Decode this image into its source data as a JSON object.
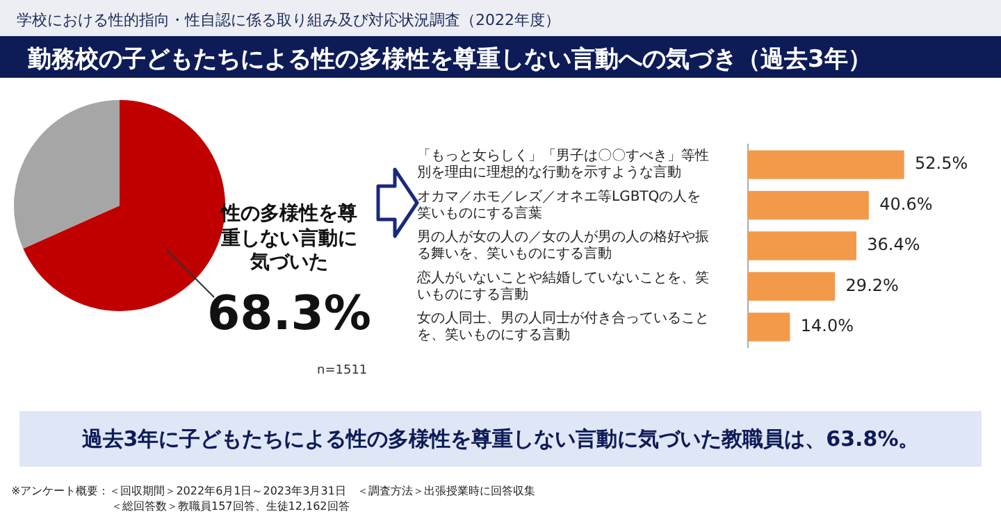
{
  "chart_data": [
    {
      "type": "pie",
      "title": "勤務校の子どもたちによる性の多様性を尊重しない言動への気づき（過去3年）",
      "subtitle": "学校における性的指向・性自認に係る取り組み及び対応状況調査（2022年度）",
      "categories": [
        "性の多様性を尊重しない言動に気づいた",
        null
      ],
      "values": [
        68.3,
        31.7
      ],
      "colors": [
        "#c00000",
        "#a6a6a6"
      ],
      "value_labels": [
        "68.3%",
        null
      ],
      "legend": false,
      "annotations": [
        "n=1511",
        "過去3年に子どもたちによる性の多様性を尊重しない言動に気づいた教職員は、63.8%。",
        "※アンケート概要：＜回収期間＞2022年6月1日～2023年3月31日　＜調査方法＞出張授業時に回答収集",
        "＜総回答数＞教職員157回答、生徒12,162回答"
      ]
    },
    {
      "type": "bar",
      "orientation": "horizontal",
      "categories": [
        "「もっと女らしく」「男子は〇〇すべき」等性別を理由に理想的な行動を示すような言動",
        "オカマ／ホモ／レズ／オネエ等LGBTQの人を笑いものにする言葉",
        "男の人が女の人の／女の人が男の人の格好や振る舞いを、笑いものにする言動",
        "恋人がいないことや結婚していないことを、笑いものにする言動",
        "女の人同士、男の人同士が付き合っていることを、笑いものにする言動"
      ],
      "values": [
        52.5,
        40.6,
        36.4,
        29.2,
        14.0
      ],
      "color": "#f39a4a",
      "value_labels": [
        "52.5%",
        "40.6%",
        "36.4%",
        "29.2%",
        "14.0%"
      ],
      "legend": false,
      "grid": false
    }
  ]
}
